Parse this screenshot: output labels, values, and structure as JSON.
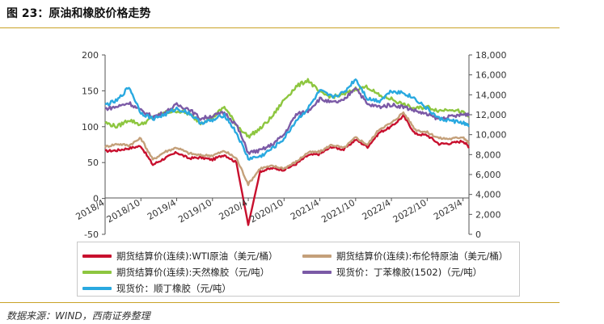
{
  "figure": {
    "title": "图 23：原油和橡胶价格走势",
    "source": "数据来源：WIND，西南证券整理"
  },
  "chart_data": {
    "type": "line",
    "x_tick_labels": [
      "2018/4",
      "2018/10",
      "2019/4",
      "2019/10",
      "2020/4",
      "2020/10",
      "2021/4",
      "2021/10",
      "2022/4",
      "2022/10",
      "2023/4"
    ],
    "left_axis": {
      "ylim": [
        -50,
        200
      ],
      "ticks": [
        "-50",
        "0",
        "50",
        "100",
        "150",
        "200"
      ]
    },
    "right_axis": {
      "ylim": [
        0,
        18000
      ],
      "ticks": [
        "0",
        "2,000",
        "4,000",
        "6,000",
        "8,000",
        "10,000",
        "12,000",
        "14,000",
        "16,000",
        "18,000"
      ]
    },
    "grid": false,
    "legend": "bottom",
    "series": [
      {
        "name": "期货结算价(连续):WTI原油（美元/桶）",
        "axis": "left",
        "color": "#c8102e",
        "x": [
          "2018/4",
          "2018/6",
          "2018/8",
          "2018/10",
          "2018/12",
          "2019/2",
          "2019/4",
          "2019/6",
          "2019/8",
          "2019/10",
          "2019/12",
          "2020/2",
          "2020/4",
          "2020/6",
          "2020/8",
          "2020/10",
          "2020/12",
          "2021/2",
          "2021/4",
          "2021/6",
          "2021/8",
          "2021/10",
          "2021/12",
          "2022/2",
          "2022/4",
          "2022/6",
          "2022/8",
          "2022/10",
          "2022/12",
          "2023/2",
          "2023/4",
          "2023/5"
        ],
        "y": [
          66,
          67,
          70,
          73,
          47,
          56,
          64,
          56,
          57,
          54,
          61,
          50,
          -37,
          38,
          42,
          40,
          48,
          60,
          62,
          72,
          68,
          82,
          72,
          92,
          100,
          115,
          90,
          88,
          76,
          77,
          80,
          72
        ]
      },
      {
        "name": "期货结算价(连续):布伦特原油（美元/桶）",
        "axis": "left",
        "color": "#c4a07a",
        "x": [
          "2018/4",
          "2018/6",
          "2018/8",
          "2018/10",
          "2018/12",
          "2019/2",
          "2019/4",
          "2019/6",
          "2019/8",
          "2019/10",
          "2019/12",
          "2020/2",
          "2020/4",
          "2020/6",
          "2020/8",
          "2020/10",
          "2020/12",
          "2021/2",
          "2021/4",
          "2021/6",
          "2021/8",
          "2021/10",
          "2021/12",
          "2022/2",
          "2022/4",
          "2022/6",
          "2022/8",
          "2022/10",
          "2022/12",
          "2023/2",
          "2023/4",
          "2023/5"
        ],
        "y": [
          72,
          76,
          74,
          84,
          54,
          65,
          71,
          63,
          60,
          60,
          66,
          56,
          20,
          42,
          45,
          42,
          51,
          64,
          65,
          75,
          70,
          85,
          75,
          97,
          105,
          120,
          96,
          92,
          84,
          83,
          86,
          77
        ]
      },
      {
        "name": "期货结算价(连续):天然橡胶（元/吨）",
        "axis": "right",
        "color": "#8dc63f",
        "x": [
          "2018/4",
          "2018/6",
          "2018/8",
          "2018/10",
          "2018/12",
          "2019/2",
          "2019/4",
          "2019/6",
          "2019/8",
          "2019/10",
          "2019/12",
          "2020/2",
          "2020/4",
          "2020/6",
          "2020/8",
          "2020/10",
          "2020/12",
          "2021/2",
          "2021/4",
          "2021/6",
          "2021/8",
          "2021/10",
          "2021/12",
          "2022/2",
          "2022/4",
          "2022/6",
          "2022/8",
          "2022/10",
          "2022/12",
          "2023/2",
          "2023/4",
          "2023/5"
        ],
        "y": [
          11200,
          10800,
          11500,
          11000,
          11700,
          12200,
          12400,
          12100,
          11200,
          11700,
          12800,
          11000,
          9800,
          10600,
          11800,
          13500,
          14800,
          15500,
          14200,
          13800,
          14000,
          14600,
          14800,
          13900,
          13600,
          13000,
          12600,
          12800,
          12400,
          12600,
          12200,
          11800
        ]
      },
      {
        "name": "现货价：丁苯橡胶(1502)（元/吨）",
        "axis": "right",
        "color": "#7b5aa6",
        "x": [
          "2018/4",
          "2018/6",
          "2018/8",
          "2018/10",
          "2018/12",
          "2019/2",
          "2019/4",
          "2019/6",
          "2019/8",
          "2019/10",
          "2019/12",
          "2020/2",
          "2020/4",
          "2020/6",
          "2020/8",
          "2020/10",
          "2020/12",
          "2021/2",
          "2021/4",
          "2021/6",
          "2021/8",
          "2021/10",
          "2021/12",
          "2022/2",
          "2022/4",
          "2022/6",
          "2022/8",
          "2022/10",
          "2022/12",
          "2023/2",
          "2023/4",
          "2023/5"
        ],
        "y": [
          12600,
          12800,
          13200,
          12400,
          11800,
          12200,
          13000,
          12600,
          11600,
          11900,
          12200,
          11000,
          8200,
          8400,
          9000,
          10000,
          12000,
          12400,
          13600,
          13200,
          13400,
          14800,
          13000,
          12800,
          13000,
          12800,
          12400,
          12000,
          11600,
          11800,
          12000,
          12100
        ]
      },
      {
        "name": "现货价：顺丁橡胶（元/吨）",
        "axis": "right",
        "color": "#29a9e0",
        "x": [
          "2018/4",
          "2018/6",
          "2018/8",
          "2018/10",
          "2018/12",
          "2019/2",
          "2019/4",
          "2019/6",
          "2019/8",
          "2019/10",
          "2019/12",
          "2020/2",
          "2020/4",
          "2020/6",
          "2020/8",
          "2020/10",
          "2020/12",
          "2021/2",
          "2021/4",
          "2021/6",
          "2021/8",
          "2021/10",
          "2021/12",
          "2022/2",
          "2022/4",
          "2022/6",
          "2022/8",
          "2022/10",
          "2022/12",
          "2023/2",
          "2023/4",
          "2023/5"
        ],
        "y": [
          13000,
          13400,
          14800,
          12200,
          11600,
          12000,
          12600,
          12200,
          11200,
          11400,
          12000,
          10200,
          7600,
          7800,
          8600,
          9600,
          11400,
          12600,
          14400,
          13800,
          14200,
          15600,
          13600,
          13400,
          14400,
          14200,
          13600,
          12600,
          11600,
          11400,
          11200,
          10800
        ]
      }
    ]
  }
}
